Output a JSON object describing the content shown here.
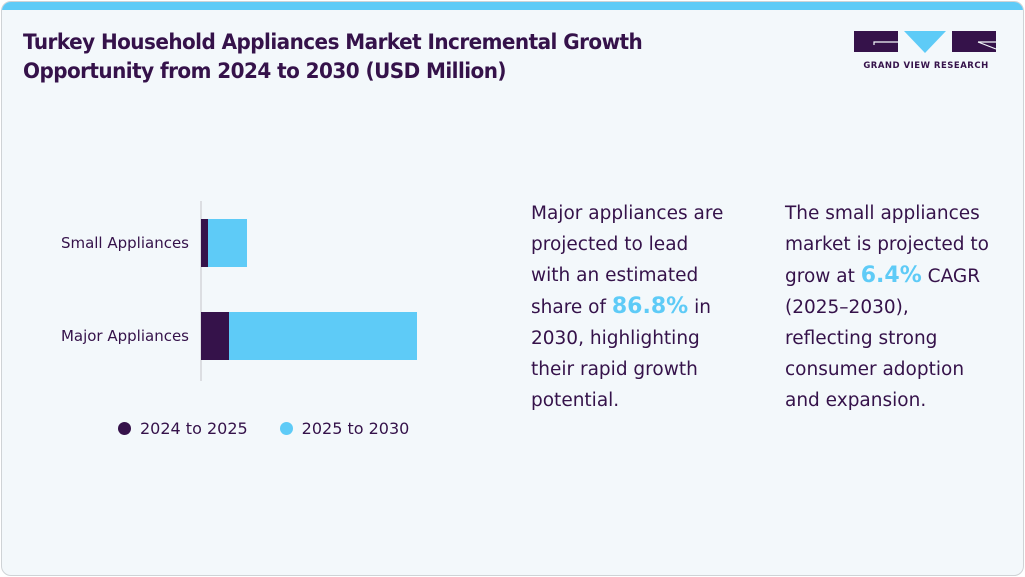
{
  "header": {
    "title": "Turkey Household Appliances Market Incremental Growth Opportunity from 2024 to 2030 (USD Million)",
    "logo_text": "GRAND VIEW RESEARCH"
  },
  "colors": {
    "accent": "#5ecbf7",
    "brand_dark": "#35124a",
    "background": "#f3f8fb"
  },
  "chart_data": {
    "type": "bar",
    "orientation": "horizontal",
    "stacked": true,
    "title": "Turkey Household Appliances Market Incremental Growth Opportunity from 2024 to 2030 (USD Million)",
    "xlabel": "",
    "ylabel": "",
    "categories": [
      "Small Appliances",
      "Major Appliances"
    ],
    "series": [
      {
        "name": "2024 to 2025",
        "color": "#35124a",
        "values": [
          7,
          28
        ]
      },
      {
        "name": "2025 to 2030",
        "color": "#5ecbf7",
        "values": [
          39,
          188
        ]
      }
    ],
    "xlim": [
      0,
      216
    ],
    "grid": false,
    "legend_position": "bottom",
    "note": "No axis values shown; values are relative estimates"
  },
  "legend": [
    {
      "label": "2024 to 2025",
      "color": "#35124a"
    },
    {
      "label": "2025 to 2030",
      "color": "#5ecbf7"
    }
  ],
  "insights": [
    {
      "before": "Major appliances are projected to lead with an estimated share of ",
      "highlight": "86.8%",
      "after": " in 2030, highlighting their rapid growth potential."
    },
    {
      "before": "The small appliances market is projected to grow at ",
      "highlight": "6.4%",
      "after": " CAGR (2025–2030), reflecting strong consumer adoption and expansion."
    }
  ]
}
